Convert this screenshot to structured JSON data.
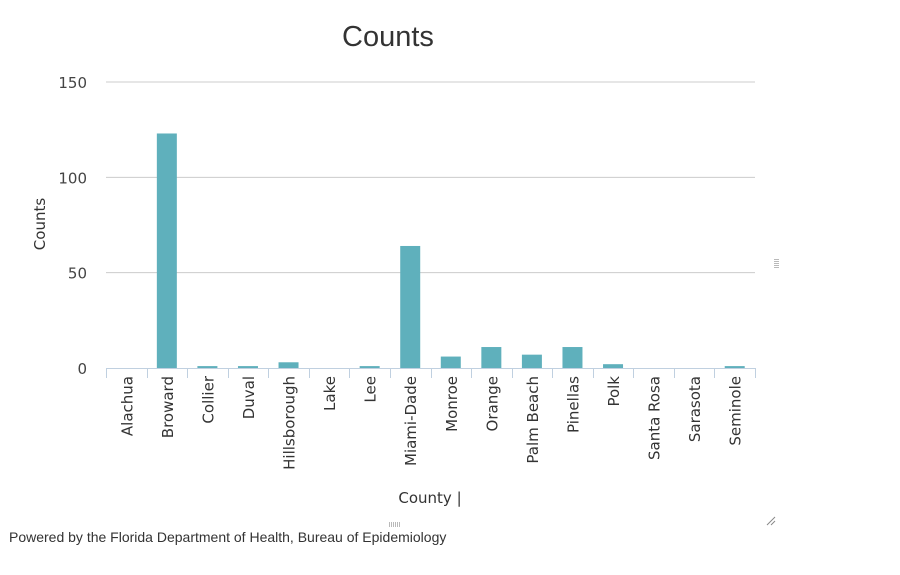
{
  "chart_data": {
    "type": "bar",
    "title": "Counts",
    "xlabel": "County |",
    "ylabel": "Counts",
    "categories": [
      "Alachua",
      "Broward",
      "Collier",
      "Duval",
      "Hillsborough",
      "Lake",
      "Lee",
      "Miami-Dade",
      "Monroe",
      "Orange",
      "Palm Beach",
      "Pinellas",
      "Polk",
      "Santa Rosa",
      "Sarasota",
      "Seminole"
    ],
    "values": [
      0,
      123,
      1,
      1,
      3,
      0,
      1,
      64,
      6,
      11,
      7,
      11,
      2,
      0,
      0,
      1
    ],
    "ylim": [
      0,
      150
    ],
    "yticks": [
      0,
      50,
      100,
      150
    ],
    "grid": true,
    "legend": "none",
    "bar_color": "#5fb0bc"
  },
  "footer": {
    "text": "Powered by the Florida Department of Health, Bureau of Epidemiology"
  }
}
